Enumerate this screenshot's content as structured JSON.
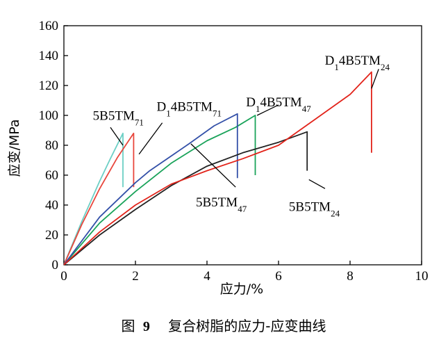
{
  "chart_data": {
    "type": "line",
    "title": "",
    "xlabel": "应力/%",
    "ylabel": "应变/MPa",
    "xlim": [
      0,
      10
    ],
    "ylim": [
      0,
      160
    ],
    "xticks": [
      0,
      2,
      4,
      6,
      8,
      10
    ],
    "yticks": [
      0,
      20,
      40,
      60,
      80,
      100,
      120,
      140,
      160
    ],
    "grid": false,
    "series": [
      {
        "name": "5B5TM71",
        "label_main": "5B5TM",
        "label_sub": "71",
        "color": "#6ccfc5",
        "points": [
          [
            0,
            0
          ],
          [
            0.5,
            29
          ],
          [
            1.0,
            56
          ],
          [
            1.3,
            71
          ],
          [
            1.65,
            88
          ],
          [
            1.65,
            52
          ]
        ]
      },
      {
        "name": "D14B5TM71",
        "label_prefix": "D",
        "label_prefix_sub": "1",
        "label_main": "4B5TM",
        "label_sub": "71",
        "color": "#e8463c",
        "points": [
          [
            0,
            0
          ],
          [
            0.5,
            27
          ],
          [
            1.0,
            51
          ],
          [
            1.5,
            72
          ],
          [
            1.95,
            88
          ],
          [
            1.95,
            52
          ]
        ]
      },
      {
        "name": "D14B5TM47",
        "label_prefix": "D",
        "label_prefix_sub": "1",
        "label_main": "4B5TM",
        "label_sub": "47",
        "color": "#1aa35a",
        "points": [
          [
            0,
            0
          ],
          [
            1.0,
            28
          ],
          [
            2.0,
            49
          ],
          [
            3.0,
            68
          ],
          [
            4.0,
            83
          ],
          [
            4.8,
            92
          ],
          [
            5.35,
            100
          ],
          [
            5.35,
            60
          ]
        ]
      },
      {
        "name": "5B5TM47",
        "label_main": "5B5TM",
        "label_sub": "47",
        "color": "#3350a8",
        "points": [
          [
            0,
            0
          ],
          [
            1.0,
            32
          ],
          [
            2.0,
            55
          ],
          [
            2.4,
            63
          ],
          [
            3.5,
            81
          ],
          [
            4.2,
            93
          ],
          [
            4.85,
            101
          ],
          [
            4.85,
            58
          ]
        ]
      },
      {
        "name": "5B5TM24",
        "label_main": "5B5TM",
        "label_sub": "24",
        "color": "#222222",
        "points": [
          [
            0,
            0
          ],
          [
            1.0,
            20
          ],
          [
            2.0,
            37
          ],
          [
            3.0,
            53
          ],
          [
            4.0,
            66
          ],
          [
            5.0,
            75
          ],
          [
            6.0,
            82
          ],
          [
            6.8,
            89
          ],
          [
            6.8,
            63
          ]
        ]
      },
      {
        "name": "D14B5TM24",
        "label_prefix": "D",
        "label_prefix_sub": "1",
        "label_main": "4B5TM",
        "label_sub": "24",
        "color": "#e2231a",
        "points": [
          [
            0,
            0
          ],
          [
            1.0,
            22
          ],
          [
            2.0,
            40
          ],
          [
            3.0,
            54
          ],
          [
            4.0,
            63
          ],
          [
            5.0,
            71
          ],
          [
            6.0,
            80
          ],
          [
            7.0,
            97
          ],
          [
            8.0,
            114
          ],
          [
            8.6,
            129
          ],
          [
            8.6,
            75
          ]
        ]
      }
    ],
    "annotations": [
      {
        "series": "5B5TM71",
        "text_x": 1.52,
        "text_y": 97,
        "line": [
          [
            1.3,
            92
          ],
          [
            1.65,
            80
          ]
        ]
      },
      {
        "series": "D14B5TM71",
        "text_x": 3.5,
        "text_y": 103,
        "line": [
          [
            2.75,
            95
          ],
          [
            2.1,
            74
          ]
        ]
      },
      {
        "series": "D14B5TM47",
        "text_x": 6.0,
        "text_y": 106,
        "line": [
          [
            5.4,
            100
          ],
          [
            6.0,
            107
          ]
        ]
      },
      {
        "series": "D14B5TM24",
        "text_x": 8.2,
        "text_y": 134,
        "line": [
          [
            8.8,
            131
          ],
          [
            8.6,
            118
          ]
        ]
      },
      {
        "series": "5B5TM47",
        "text_x": 4.4,
        "text_y": 39,
        "line": [
          [
            3.55,
            81
          ],
          [
            4.8,
            52
          ]
        ]
      },
      {
        "series": "5B5TM24",
        "text_x": 7.0,
        "text_y": 36,
        "line": [
          [
            6.85,
            57
          ],
          [
            7.3,
            51
          ]
        ]
      }
    ]
  },
  "caption": {
    "figure_label": "图",
    "figure_number": "9",
    "text": "复合树脂的应力-应变曲线"
  }
}
